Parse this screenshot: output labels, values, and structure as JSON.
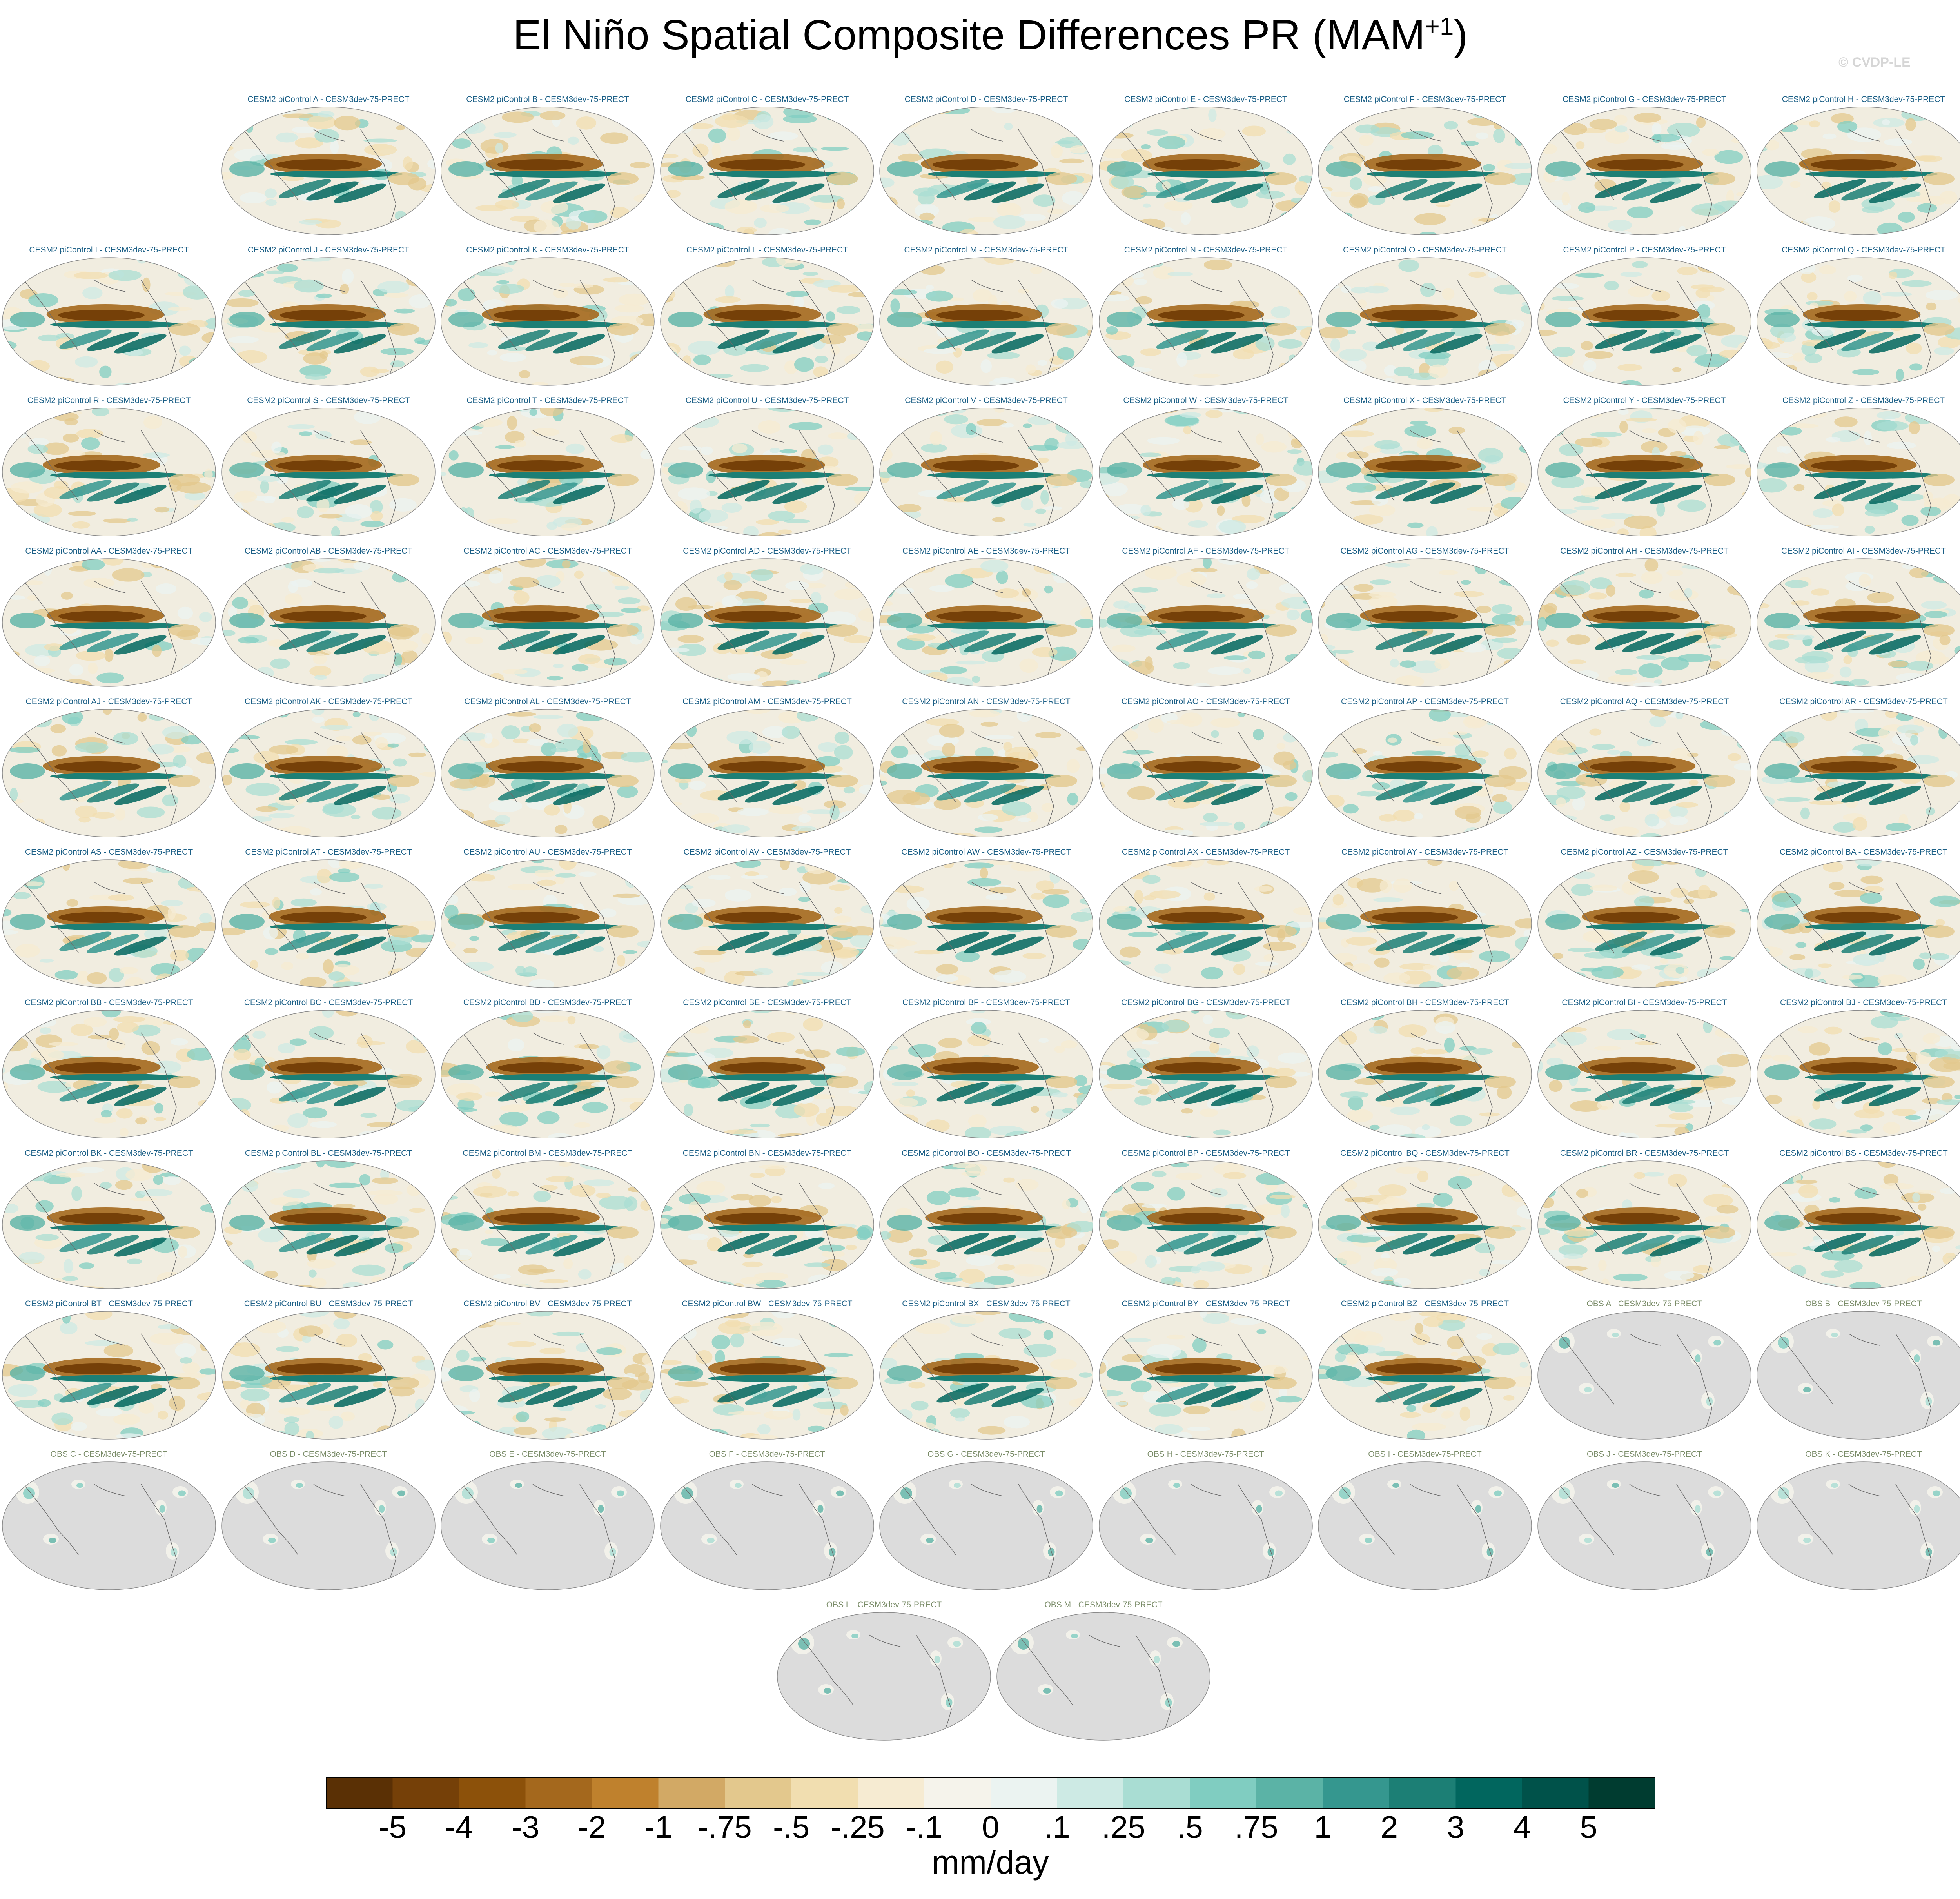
{
  "title": {
    "main": "El Niño Spatial Composite Differences PR (MAM",
    "superscript": "+1",
    "close": ")"
  },
  "watermark": "© CVDP-LE",
  "chart_data": {
    "type": "heatmap",
    "title": "El Niño Spatial Composite Differences PR (MAM+1)",
    "variable": "PR",
    "season": "MAM+1",
    "units": "mm/day",
    "projection": "global map (Robinson-like, Pacific-centered)",
    "panels": [
      {
        "label": "CESM2 piControl A - CESM3dev-75-PRECT",
        "kind": "model"
      },
      {
        "label": "CESM2 piControl B - CESM3dev-75-PRECT",
        "kind": "model"
      },
      {
        "label": "CESM2 piControl C - CESM3dev-75-PRECT",
        "kind": "model"
      },
      {
        "label": "CESM2 piControl D - CESM3dev-75-PRECT",
        "kind": "model"
      },
      {
        "label": "CESM2 piControl E - CESM3dev-75-PRECT",
        "kind": "model"
      },
      {
        "label": "CESM2 piControl F - CESM3dev-75-PRECT",
        "kind": "model"
      },
      {
        "label": "CESM2 piControl G - CESM3dev-75-PRECT",
        "kind": "model"
      },
      {
        "label": "CESM2 piControl H - CESM3dev-75-PRECT",
        "kind": "model"
      },
      {
        "label": "CESM2 piControl I - CESM3dev-75-PRECT",
        "kind": "model"
      },
      {
        "label": "CESM2 piControl J - CESM3dev-75-PRECT",
        "kind": "model"
      },
      {
        "label": "CESM2 piControl K - CESM3dev-75-PRECT",
        "kind": "model"
      },
      {
        "label": "CESM2 piControl L - CESM3dev-75-PRECT",
        "kind": "model"
      },
      {
        "label": "CESM2 piControl M - CESM3dev-75-PRECT",
        "kind": "model"
      },
      {
        "label": "CESM2 piControl N - CESM3dev-75-PRECT",
        "kind": "model"
      },
      {
        "label": "CESM2 piControl O - CESM3dev-75-PRECT",
        "kind": "model"
      },
      {
        "label": "CESM2 piControl P - CESM3dev-75-PRECT",
        "kind": "model"
      },
      {
        "label": "CESM2 piControl Q - CESM3dev-75-PRECT",
        "kind": "model"
      },
      {
        "label": "CESM2 piControl R - CESM3dev-75-PRECT",
        "kind": "model"
      },
      {
        "label": "CESM2 piControl S - CESM3dev-75-PRECT",
        "kind": "model"
      },
      {
        "label": "CESM2 piControl T - CESM3dev-75-PRECT",
        "kind": "model"
      },
      {
        "label": "CESM2 piControl U - CESM3dev-75-PRECT",
        "kind": "model"
      },
      {
        "label": "CESM2 piControl V - CESM3dev-75-PRECT",
        "kind": "model"
      },
      {
        "label": "CESM2 piControl W - CESM3dev-75-PRECT",
        "kind": "model"
      },
      {
        "label": "CESM2 piControl X - CESM3dev-75-PRECT",
        "kind": "model"
      },
      {
        "label": "CESM2 piControl Y - CESM3dev-75-PRECT",
        "kind": "model"
      },
      {
        "label": "CESM2 piControl Z - CESM3dev-75-PRECT",
        "kind": "model"
      },
      {
        "label": "CESM2 piControl AA - CESM3dev-75-PRECT",
        "kind": "model"
      },
      {
        "label": "CESM2 piControl AB - CESM3dev-75-PRECT",
        "kind": "model"
      },
      {
        "label": "CESM2 piControl AC - CESM3dev-75-PRECT",
        "kind": "model"
      },
      {
        "label": "CESM2 piControl AD - CESM3dev-75-PRECT",
        "kind": "model"
      },
      {
        "label": "CESM2 piControl AE - CESM3dev-75-PRECT",
        "kind": "model"
      },
      {
        "label": "CESM2 piControl AF - CESM3dev-75-PRECT",
        "kind": "model"
      },
      {
        "label": "CESM2 piControl AG - CESM3dev-75-PRECT",
        "kind": "model"
      },
      {
        "label": "CESM2 piControl AH - CESM3dev-75-PRECT",
        "kind": "model"
      },
      {
        "label": "CESM2 piControl AI - CESM3dev-75-PRECT",
        "kind": "model"
      },
      {
        "label": "CESM2 piControl AJ - CESM3dev-75-PRECT",
        "kind": "model"
      },
      {
        "label": "CESM2 piControl AK - CESM3dev-75-PRECT",
        "kind": "model"
      },
      {
        "label": "CESM2 piControl AL - CESM3dev-75-PRECT",
        "kind": "model"
      },
      {
        "label": "CESM2 piControl AM - CESM3dev-75-PRECT",
        "kind": "model"
      },
      {
        "label": "CESM2 piControl AN - CESM3dev-75-PRECT",
        "kind": "model"
      },
      {
        "label": "CESM2 piControl AO - CESM3dev-75-PRECT",
        "kind": "model"
      },
      {
        "label": "CESM2 piControl AP - CESM3dev-75-PRECT",
        "kind": "model"
      },
      {
        "label": "CESM2 piControl AQ - CESM3dev-75-PRECT",
        "kind": "model"
      },
      {
        "label": "CESM2 piControl AR - CESM3dev-75-PRECT",
        "kind": "model"
      },
      {
        "label": "CESM2 piControl AS - CESM3dev-75-PRECT",
        "kind": "model"
      },
      {
        "label": "CESM2 piControl AT - CESM3dev-75-PRECT",
        "kind": "model"
      },
      {
        "label": "CESM2 piControl AU - CESM3dev-75-PRECT",
        "kind": "model"
      },
      {
        "label": "CESM2 piControl AV - CESM3dev-75-PRECT",
        "kind": "model"
      },
      {
        "label": "CESM2 piControl AW - CESM3dev-75-PRECT",
        "kind": "model"
      },
      {
        "label": "CESM2 piControl AX - CESM3dev-75-PRECT",
        "kind": "model"
      },
      {
        "label": "CESM2 piControl AY - CESM3dev-75-PRECT",
        "kind": "model"
      },
      {
        "label": "CESM2 piControl AZ - CESM3dev-75-PRECT",
        "kind": "model"
      },
      {
        "label": "CESM2 piControl BA - CESM3dev-75-PRECT",
        "kind": "model"
      },
      {
        "label": "CESM2 piControl BB - CESM3dev-75-PRECT",
        "kind": "model"
      },
      {
        "label": "CESM2 piControl BC - CESM3dev-75-PRECT",
        "kind": "model"
      },
      {
        "label": "CESM2 piControl BD - CESM3dev-75-PRECT",
        "kind": "model"
      },
      {
        "label": "CESM2 piControl BE - CESM3dev-75-PRECT",
        "kind": "model"
      },
      {
        "label": "CESM2 piControl BF - CESM3dev-75-PRECT",
        "kind": "model"
      },
      {
        "label": "CESM2 piControl BG - CESM3dev-75-PRECT",
        "kind": "model"
      },
      {
        "label": "CESM2 piControl BH - CESM3dev-75-PRECT",
        "kind": "model"
      },
      {
        "label": "CESM2 piControl BI - CESM3dev-75-PRECT",
        "kind": "model"
      },
      {
        "label": "CESM2 piControl BJ - CESM3dev-75-PRECT",
        "kind": "model"
      },
      {
        "label": "CESM2 piControl BK - CESM3dev-75-PRECT",
        "kind": "model"
      },
      {
        "label": "CESM2 piControl BL - CESM3dev-75-PRECT",
        "kind": "model"
      },
      {
        "label": "CESM2 piControl BM - CESM3dev-75-PRECT",
        "kind": "model"
      },
      {
        "label": "CESM2 piControl BN - CESM3dev-75-PRECT",
        "kind": "model"
      },
      {
        "label": "CESM2 piControl BO - CESM3dev-75-PRECT",
        "kind": "model"
      },
      {
        "label": "CESM2 piControl BP - CESM3dev-75-PRECT",
        "kind": "model"
      },
      {
        "label": "CESM2 piControl BQ - CESM3dev-75-PRECT",
        "kind": "model"
      },
      {
        "label": "CESM2 piControl BR - CESM3dev-75-PRECT",
        "kind": "model"
      },
      {
        "label": "CESM2 piControl BS - CESM3dev-75-PRECT",
        "kind": "model"
      },
      {
        "label": "CESM2 piControl BT - CESM3dev-75-PRECT",
        "kind": "model"
      },
      {
        "label": "CESM2 piControl BU - CESM3dev-75-PRECT",
        "kind": "model"
      },
      {
        "label": "CESM2 piControl BV - CESM3dev-75-PRECT",
        "kind": "model"
      },
      {
        "label": "CESM2 piControl BW - CESM3dev-75-PRECT",
        "kind": "model"
      },
      {
        "label": "CESM2 piControl BX - CESM3dev-75-PRECT",
        "kind": "model"
      },
      {
        "label": "CESM2 piControl BY - CESM3dev-75-PRECT",
        "kind": "model"
      },
      {
        "label": "CESM2 piControl BZ - CESM3dev-75-PRECT",
        "kind": "model"
      },
      {
        "label": "OBS A - CESM3dev-75-PRECT",
        "kind": "obs"
      },
      {
        "label": "OBS B - CESM3dev-75-PRECT",
        "kind": "obs"
      },
      {
        "label": "OBS C - CESM3dev-75-PRECT",
        "kind": "obs"
      },
      {
        "label": "OBS D - CESM3dev-75-PRECT",
        "kind": "obs"
      },
      {
        "label": "OBS E - CESM3dev-75-PRECT",
        "kind": "obs"
      },
      {
        "label": "OBS F - CESM3dev-75-PRECT",
        "kind": "obs"
      },
      {
        "label": "OBS G - CESM3dev-75-PRECT",
        "kind": "obs"
      },
      {
        "label": "OBS H - CESM3dev-75-PRECT",
        "kind": "obs"
      },
      {
        "label": "OBS I - CESM3dev-75-PRECT",
        "kind": "obs"
      },
      {
        "label": "OBS J - CESM3dev-75-PRECT",
        "kind": "obs"
      },
      {
        "label": "OBS K - CESM3dev-75-PRECT",
        "kind": "obs"
      },
      {
        "label": "OBS L - CESM3dev-75-PRECT",
        "kind": "obs"
      },
      {
        "label": "OBS M - CESM3dev-75-PRECT",
        "kind": "obs"
      }
    ],
    "colorbar": {
      "labels": [
        "-5",
        "-4",
        "-3",
        "-2",
        "-1",
        "-.75",
        "-.5",
        "-.25",
        "-.1",
        "0",
        ".1",
        ".25",
        ".5",
        ".75",
        "1",
        "2",
        "3",
        "4",
        "5"
      ],
      "colors": [
        "#5a3005",
        "#754008",
        "#8c510a",
        "#a4681d",
        "#bf812d",
        "#d2a965",
        "#e3c88d",
        "#f1deb0",
        "#f6ebd2",
        "#f5f3eb",
        "#ebf3f1",
        "#cdeae4",
        "#a9ddd3",
        "#80cdc1",
        "#5bb3a6",
        "#35978f",
        "#1c7f75",
        "#01665e",
        "#00524a",
        "#003c30"
      ],
      "units": "mm/day"
    },
    "colors": {
      "model_title": "#1b5f86",
      "obs_title": "#7a8c68",
      "land_mask": "#dcdcdc",
      "map_background": "#f1ede0"
    }
  }
}
